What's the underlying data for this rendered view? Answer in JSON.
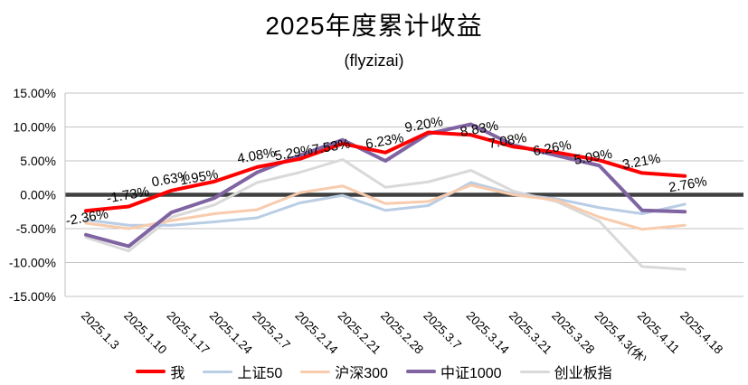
{
  "chart_data": {
    "type": "line",
    "title": "2025年度累计收益",
    "subtitle": "(flyzizai)",
    "categories": [
      "2025.1.3",
      "2025.1.10",
      "2025.1.17",
      "2025.1.24",
      "2025.2.7",
      "2025.2.14",
      "2025.2.21",
      "2025.2.28",
      "2025.3.7",
      "2025.3.14",
      "2025.3.21",
      "2025.3.28",
      "2025.4.3(休)",
      "2025.4.11",
      "2025.4.18"
    ],
    "series": [
      {
        "name": "我",
        "color": "#FF0000",
        "width": 4,
        "values": [
          -2.36,
          -1.73,
          0.63,
          1.95,
          4.08,
          5.29,
          7.53,
          6.23,
          9.2,
          8.83,
          7.08,
          6.26,
          5.09,
          3.21,
          2.76
        ],
        "labels": [
          "-2.36%",
          "-1.73%",
          "0.63%",
          "1.95%",
          "4.08%",
          "5.29%",
          "7.53%",
          "6.23%",
          "9.20%",
          "8.83%",
          "7.08%",
          "6.26%",
          "5.09%",
          "3.21%",
          "2.76%"
        ]
      },
      {
        "name": "上证50",
        "color": "#B9CDE5",
        "width": 3,
        "values": [
          -3.7,
          -4.5,
          -4.5,
          -4.0,
          -3.4,
          -1.2,
          -0.1,
          -2.3,
          -1.6,
          1.8,
          0.1,
          -0.6,
          -1.9,
          -2.8,
          -1.4
        ]
      },
      {
        "name": "沪深300",
        "color": "#F8CBAD",
        "width": 3,
        "values": [
          -4.2,
          -5.0,
          -3.8,
          -2.8,
          -2.2,
          0.3,
          1.3,
          -1.3,
          -1.0,
          1.4,
          0.0,
          -0.8,
          -3.3,
          -5.1,
          -4.5
        ]
      },
      {
        "name": "中证1000",
        "color": "#8064A2",
        "width": 4,
        "values": [
          -5.9,
          -7.6,
          -2.6,
          -0.5,
          3.3,
          5.8,
          8.1,
          5.0,
          9.0,
          10.4,
          7.3,
          5.8,
          4.3,
          -2.3,
          -2.5
        ]
      },
      {
        "name": "创业板指",
        "color": "#D9D9D9",
        "width": 3,
        "values": [
          -6.3,
          -8.3,
          -3.3,
          -1.5,
          1.8,
          3.3,
          5.2,
          1.1,
          1.9,
          3.6,
          0.5,
          -1.0,
          -3.9,
          -10.6,
          -11.0
        ]
      }
    ],
    "ylim": [
      -15,
      15
    ],
    "ytick_step": 5,
    "ytick_labels": [
      "15.00%",
      "10.00%",
      "5.00%",
      "0.00%",
      "-5.00%",
      "-10.00%",
      "-15.00%"
    ],
    "grid": true,
    "zero_line": true,
    "legend_position": "bottom",
    "colors": {
      "gridline": "#C3C3C3",
      "zero_line": "#404040",
      "axis": "#BFBFBF",
      "text": "#000000"
    }
  }
}
